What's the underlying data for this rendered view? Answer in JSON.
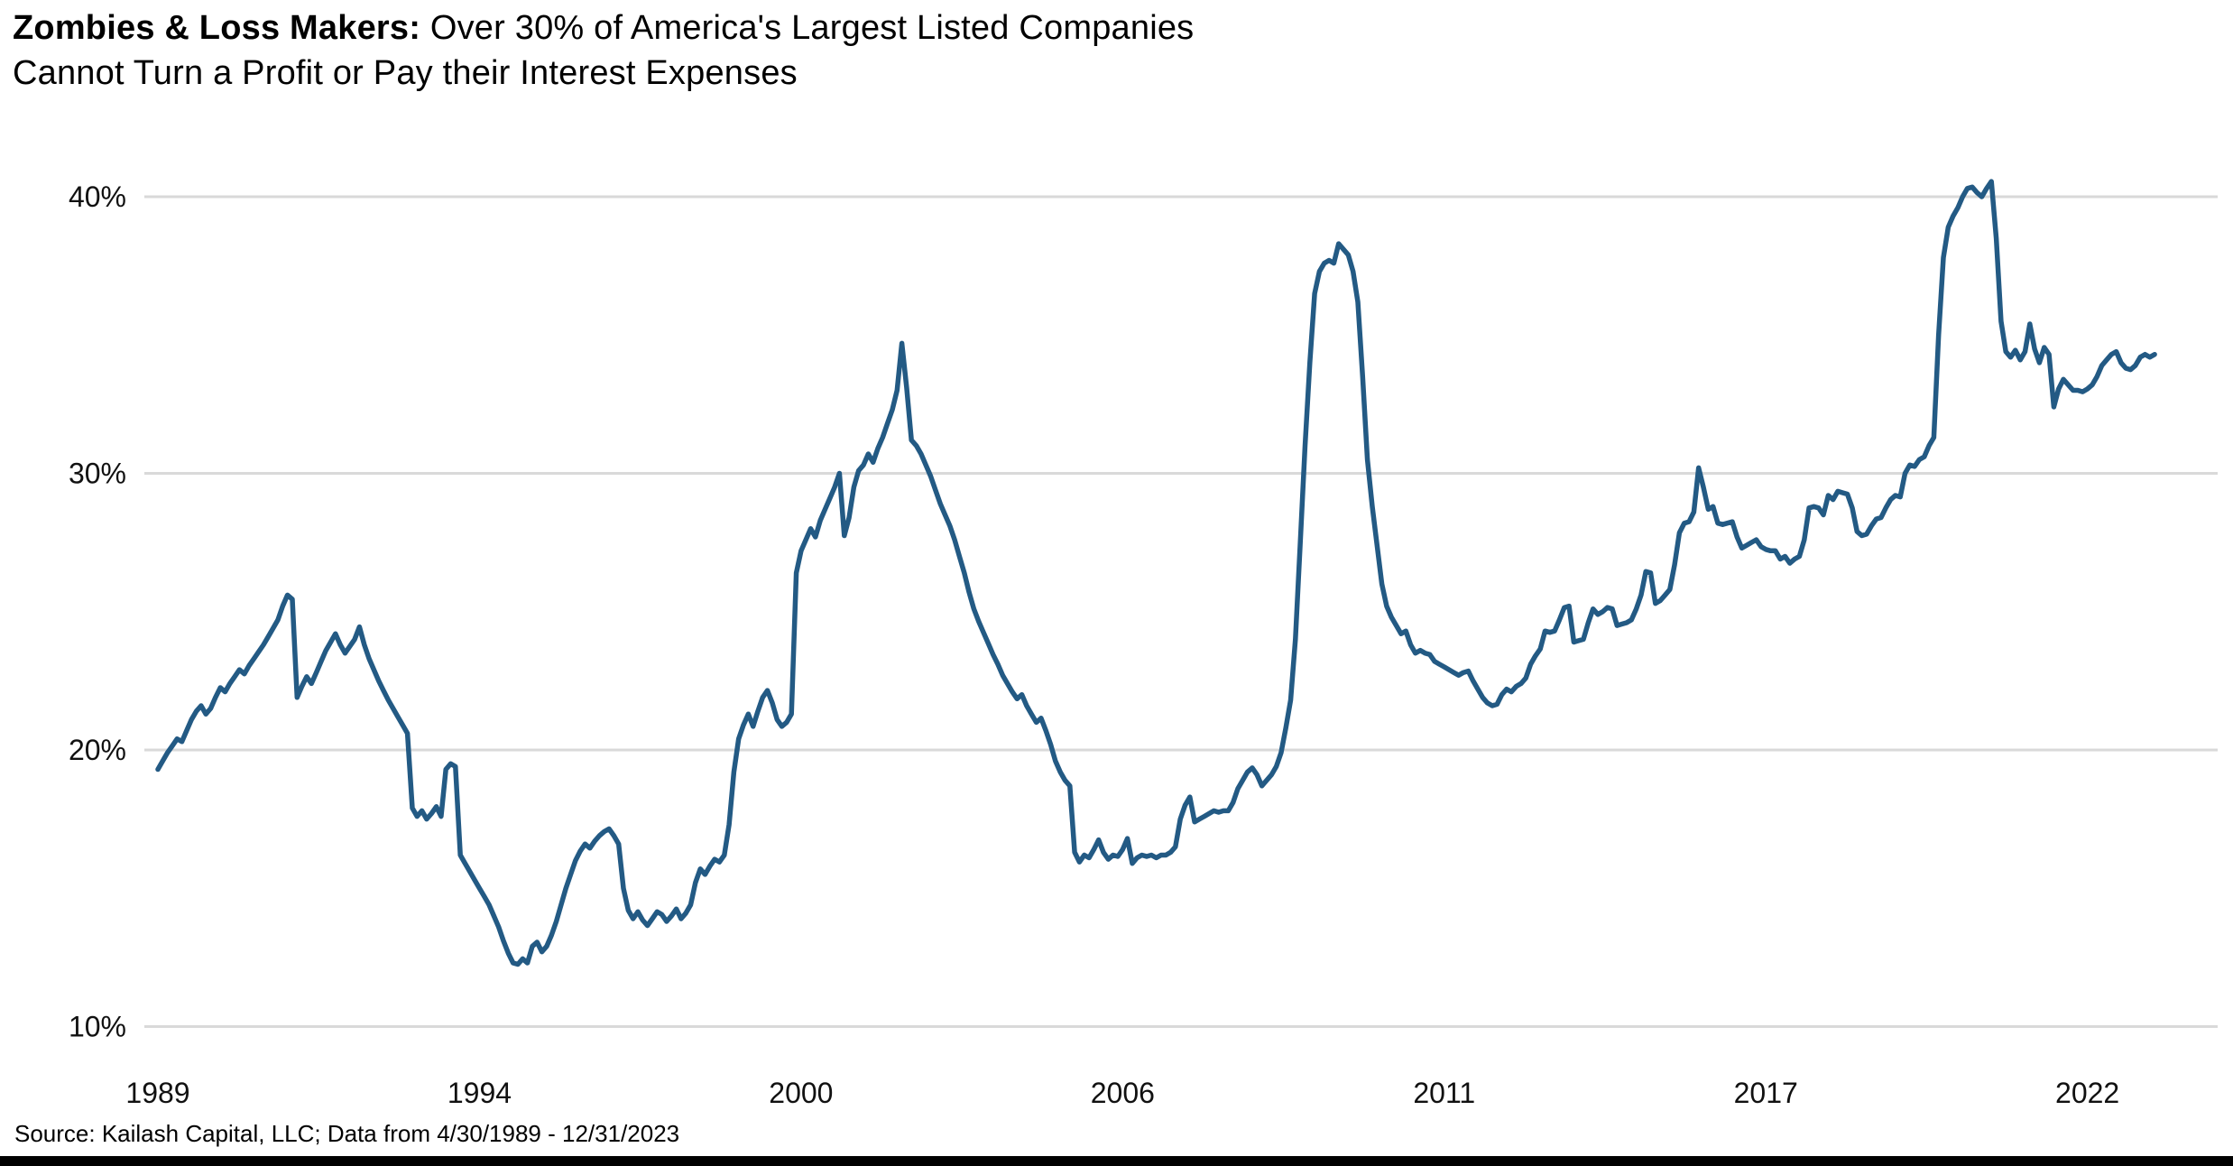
{
  "title": {
    "bold_lead": "Zombies & Loss Makers:",
    "line1_rest": " Over 30% of America's Largest Listed Companies",
    "line2": "Cannot Turn a Profit or Pay their Interest Expenses"
  },
  "source_note": "Source: Kailash Capital, LLC; Data from 4/30/1989 - 12/31/2023",
  "colors": {
    "line": "#235A84",
    "gridline": "#D9D9D9",
    "axis_text": "#111111",
    "title_text": "#000000",
    "bottom_bar": "#000000",
    "background": "#FFFFFF"
  },
  "chart_data": {
    "type": "line",
    "title": "Zombies & Loss Makers: Over 30% of America's Largest Listed Companies Cannot Turn a Profit or Pay their Interest Expenses",
    "series_name": "Share of largest listed US companies that cannot turn a profit or pay interest expenses",
    "frequency": "monthly",
    "start_month": "1989-04",
    "end_month": "2023-12",
    "grid": "horizontal-only",
    "legend": "none",
    "ylim": [
      10,
      41
    ],
    "y_ticks": [
      {
        "label": "40%",
        "value": 40
      },
      {
        "label": "30%",
        "value": 30
      },
      {
        "label": "20%",
        "value": 20
      },
      {
        "label": "10%",
        "value": 10
      }
    ],
    "x_ticks": [
      {
        "label": "1989",
        "month_index": 0
      },
      {
        "label": "1994",
        "month_index": 67
      },
      {
        "label": "2000",
        "month_index": 134
      },
      {
        "label": "2006",
        "month_index": 201
      },
      {
        "label": "2011",
        "month_index": 268
      },
      {
        "label": "2017",
        "month_index": 335
      },
      {
        "label": "2022",
        "month_index": 402
      }
    ],
    "values": [
      19.3,
      19.6,
      19.9,
      20.15,
      20.4,
      20.3,
      20.7,
      21.1,
      21.4,
      21.6,
      21.3,
      21.5,
      21.9,
      22.25,
      22.1,
      22.4,
      22.65,
      22.9,
      22.75,
      23.05,
      23.3,
      23.55,
      23.8,
      24.1,
      24.4,
      24.7,
      25.2,
      25.6,
      25.45,
      21.9,
      22.3,
      22.65,
      22.4,
      22.8,
      23.2,
      23.6,
      23.9,
      24.2,
      23.8,
      23.5,
      23.75,
      24.0,
      24.45,
      23.8,
      23.3,
      22.9,
      22.5,
      22.15,
      21.8,
      21.5,
      21.2,
      20.9,
      20.6,
      17.9,
      17.6,
      17.8,
      17.5,
      17.7,
      17.95,
      17.6,
      19.3,
      19.5,
      19.4,
      16.2,
      15.9,
      15.6,
      15.3,
      15.0,
      14.7,
      14.4,
      14.0,
      13.6,
      13.1,
      12.65,
      12.3,
      12.25,
      12.45,
      12.3,
      12.9,
      13.05,
      12.7,
      12.9,
      13.3,
      13.8,
      14.4,
      15.0,
      15.5,
      16.0,
      16.35,
      16.6,
      16.45,
      16.7,
      16.9,
      17.05,
      17.15,
      16.9,
      16.6,
      15.0,
      14.2,
      13.9,
      14.15,
      13.85,
      13.65,
      13.9,
      14.15,
      14.05,
      13.8,
      14.0,
      14.25,
      13.9,
      14.1,
      14.4,
      15.2,
      15.7,
      15.5,
      15.8,
      16.05,
      15.95,
      16.2,
      17.3,
      19.2,
      20.4,
      20.9,
      21.3,
      20.85,
      21.4,
      21.9,
      22.15,
      21.7,
      21.1,
      20.85,
      21.0,
      21.3,
      26.4,
      27.2,
      27.6,
      28.0,
      27.7,
      28.3,
      28.7,
      29.1,
      29.5,
      30.0,
      27.75,
      28.4,
      29.5,
      30.1,
      30.3,
      30.7,
      30.4,
      30.9,
      31.3,
      31.8,
      32.3,
      33.0,
      34.7,
      33.1,
      31.2,
      31.0,
      30.7,
      30.3,
      29.9,
      29.4,
      28.9,
      28.5,
      28.1,
      27.6,
      27.0,
      26.4,
      25.7,
      25.1,
      24.65,
      24.25,
      23.85,
      23.45,
      23.1,
      22.7,
      22.4,
      22.1,
      21.85,
      22.0,
      21.6,
      21.3,
      21.0,
      21.15,
      20.7,
      20.2,
      19.6,
      19.2,
      18.9,
      18.7,
      16.3,
      15.95,
      16.2,
      16.1,
      16.4,
      16.75,
      16.3,
      16.05,
      16.2,
      16.15,
      16.4,
      16.8,
      15.9,
      16.1,
      16.2,
      16.15,
      16.2,
      16.1,
      16.2,
      16.2,
      16.3,
      16.5,
      17.5,
      18.0,
      18.3,
      17.4,
      17.5,
      17.6,
      17.7,
      17.8,
      17.75,
      17.8,
      17.8,
      18.1,
      18.6,
      18.9,
      19.2,
      19.35,
      19.1,
      18.7,
      18.9,
      19.1,
      19.4,
      19.9,
      20.8,
      21.8,
      24.0,
      27.5,
      31.0,
      34.0,
      36.5,
      37.3,
      37.6,
      37.7,
      37.6,
      38.3,
      38.1,
      37.9,
      37.3,
      36.2,
      33.5,
      30.5,
      28.8,
      27.4,
      26.0,
      25.2,
      24.8,
      24.5,
      24.2,
      24.3,
      23.8,
      23.5,
      23.6,
      23.5,
      23.45,
      23.2,
      23.1,
      23.0,
      22.9,
      22.8,
      22.7,
      22.8,
      22.85,
      22.5,
      22.2,
      21.9,
      21.7,
      21.6,
      21.65,
      22.0,
      22.2,
      22.1,
      22.3,
      22.4,
      22.6,
      23.1,
      23.4,
      23.65,
      24.3,
      24.25,
      24.3,
      24.7,
      25.15,
      25.2,
      23.9,
      23.95,
      24.0,
      24.6,
      25.1,
      24.9,
      25.0,
      25.15,
      25.1,
      24.5,
      24.55,
      24.6,
      24.7,
      25.1,
      25.6,
      26.45,
      26.4,
      25.3,
      25.4,
      25.6,
      25.8,
      26.7,
      27.85,
      28.2,
      28.25,
      28.6,
      30.2,
      29.5,
      28.7,
      28.8,
      28.2,
      28.15,
      28.2,
      28.25,
      27.7,
      27.3,
      27.4,
      27.5,
      27.6,
      27.35,
      27.25,
      27.2,
      27.2,
      26.9,
      27.0,
      26.75,
      26.9,
      27.0,
      27.6,
      28.75,
      28.8,
      28.75,
      28.5,
      29.2,
      29.05,
      29.35,
      29.3,
      29.25,
      28.75,
      27.9,
      27.75,
      27.8,
      28.1,
      28.35,
      28.4,
      28.75,
      29.05,
      29.2,
      29.15,
      30.0,
      30.3,
      30.25,
      30.5,
      30.6,
      31.0,
      31.3,
      35.0,
      37.8,
      38.9,
      39.3,
      39.6,
      40.0,
      40.3,
      40.35,
      40.15,
      40.0,
      40.3,
      40.55,
      38.5,
      35.5,
      34.4,
      34.2,
      34.45,
      34.1,
      34.4,
      35.4,
      34.5,
      34.0,
      34.55,
      34.3,
      32.4,
      33.05,
      33.4,
      33.2,
      33.0,
      33.0,
      32.95,
      33.05,
      33.2,
      33.5,
      33.9,
      34.1,
      34.3,
      34.4,
      34.0,
      33.8,
      33.75,
      33.9,
      34.2,
      34.3,
      34.2,
      34.3
    ]
  }
}
